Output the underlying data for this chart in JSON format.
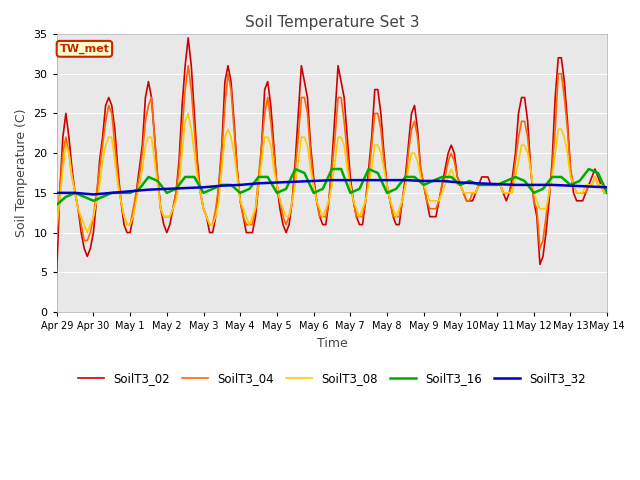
{
  "title": "Soil Temperature Set 3",
  "xlabel": "Time",
  "ylabel": "Soil Temperature (C)",
  "ylim": [
    0,
    35
  ],
  "fig_bg_color": "#ffffff",
  "plot_bg_color": "#e8e8e8",
  "annotation_text": "TW_met",
  "annotation_bg": "#ffffcc",
  "annotation_border": "#cc2200",
  "series_order": [
    "SoilT3_02",
    "SoilT3_04",
    "SoilT3_08",
    "SoilT3_16",
    "SoilT3_32"
  ],
  "series": {
    "SoilT3_02": {
      "color": "#cc0000",
      "linewidth": 1.2,
      "x": [
        0,
        0.083,
        0.167,
        0.25,
        0.333,
        0.417,
        0.5,
        0.583,
        0.667,
        0.75,
        0.833,
        0.917,
        1.0,
        1.083,
        1.167,
        1.25,
        1.333,
        1.417,
        1.5,
        1.583,
        1.667,
        1.75,
        1.833,
        1.917,
        2.0,
        2.083,
        2.167,
        2.25,
        2.333,
        2.417,
        2.5,
        2.583,
        2.667,
        2.75,
        2.833,
        2.917,
        3.0,
        3.083,
        3.167,
        3.25,
        3.333,
        3.417,
        3.5,
        3.583,
        3.667,
        3.75,
        3.833,
        3.917,
        4.0,
        4.083,
        4.167,
        4.25,
        4.333,
        4.417,
        4.5,
        4.583,
        4.667,
        4.75,
        4.833,
        4.917,
        5.0,
        5.083,
        5.167,
        5.25,
        5.333,
        5.417,
        5.5,
        5.583,
        5.667,
        5.75,
        5.833,
        5.917,
        6.0,
        6.083,
        6.167,
        6.25,
        6.333,
        6.417,
        6.5,
        6.583,
        6.667,
        6.75,
        6.833,
        6.917,
        7.0,
        7.083,
        7.167,
        7.25,
        7.333,
        7.417,
        7.5,
        7.583,
        7.667,
        7.75,
        7.833,
        7.917,
        8.0,
        8.083,
        8.167,
        8.25,
        8.333,
        8.417,
        8.5,
        8.583,
        8.667,
        8.75,
        8.833,
        8.917,
        9.0,
        9.083,
        9.167,
        9.25,
        9.333,
        9.417,
        9.5,
        9.583,
        9.667,
        9.75,
        9.833,
        9.917,
        10.0,
        10.083,
        10.167,
        10.25,
        10.333,
        10.417,
        10.5,
        10.583,
        10.667,
        10.75,
        10.833,
        10.917,
        11.0,
        11.083,
        11.167,
        11.25,
        11.333,
        11.417,
        11.5,
        11.583,
        11.667,
        11.75,
        11.833,
        11.917,
        12.0,
        12.083,
        12.167,
        12.25,
        12.333,
        12.417,
        12.5,
        12.583,
        12.667,
        12.75,
        12.833,
        12.917,
        13.0,
        13.083,
        13.167,
        13.25,
        13.333,
        13.417,
        13.5,
        13.583,
        13.667,
        13.75,
        13.833,
        13.917,
        14.0,
        14.083,
        14.167,
        14.25,
        14.333,
        14.417,
        14.5,
        14.583,
        14.667,
        14.75,
        14.833,
        14.917,
        15.0
      ],
      "y": [
        5,
        15,
        22,
        25,
        22,
        18,
        15,
        13,
        10,
        8,
        7,
        8,
        10,
        14,
        19,
        22,
        26,
        27,
        26,
        23,
        18,
        14,
        11,
        10,
        10,
        12,
        15,
        18,
        21,
        27,
        29,
        27,
        22,
        17,
        13,
        11,
        10,
        11,
        13,
        15,
        19,
        26,
        31,
        34.5,
        31,
        25,
        19,
        15,
        13,
        12,
        10,
        10,
        12,
        16,
        21,
        29,
        31,
        29,
        24,
        18,
        14,
        12,
        10,
        10,
        10,
        12,
        16,
        21,
        28,
        29,
        26,
        21,
        16,
        13,
        11,
        10,
        11,
        14,
        19,
        25,
        31,
        29,
        27,
        21,
        17,
        14,
        12,
        11,
        11,
        14,
        19,
        25,
        31,
        29,
        27,
        22,
        17,
        14,
        12,
        11,
        11,
        14,
        18,
        22,
        28,
        28,
        25,
        20,
        16,
        14,
        12,
        11,
        11,
        14,
        17,
        21,
        25,
        26,
        23,
        18,
        16,
        14,
        12,
        12,
        12,
        14,
        16,
        18,
        20,
        21,
        20,
        17,
        16,
        15,
        14,
        14,
        14,
        15,
        16,
        17,
        17,
        17,
        16,
        16,
        16,
        16,
        15,
        14,
        15,
        17,
        20,
        25,
        27,
        27,
        24,
        18,
        14,
        12,
        6,
        7,
        10,
        14,
        19,
        27,
        32,
        32,
        29,
        24,
        18,
        15,
        14,
        14,
        14,
        15,
        16,
        17,
        18,
        17,
        16,
        15,
        15
      ]
    },
    "SoilT3_04": {
      "color": "#ff6600",
      "linewidth": 1.2,
      "x": [
        0,
        0.083,
        0.167,
        0.25,
        0.333,
        0.417,
        0.5,
        0.583,
        0.667,
        0.75,
        0.833,
        0.917,
        1.0,
        1.083,
        1.167,
        1.25,
        1.333,
        1.417,
        1.5,
        1.583,
        1.667,
        1.75,
        1.833,
        1.917,
        2.0,
        2.083,
        2.167,
        2.25,
        2.333,
        2.417,
        2.5,
        2.583,
        2.667,
        2.75,
        2.833,
        2.917,
        3.0,
        3.083,
        3.167,
        3.25,
        3.333,
        3.417,
        3.5,
        3.583,
        3.667,
        3.75,
        3.833,
        3.917,
        4.0,
        4.083,
        4.167,
        4.25,
        4.333,
        4.417,
        4.5,
        4.583,
        4.667,
        4.75,
        4.833,
        4.917,
        5.0,
        5.083,
        5.167,
        5.25,
        5.333,
        5.417,
        5.5,
        5.583,
        5.667,
        5.75,
        5.833,
        5.917,
        6.0,
        6.083,
        6.167,
        6.25,
        6.333,
        6.417,
        6.5,
        6.583,
        6.667,
        6.75,
        6.833,
        6.917,
        7.0,
        7.083,
        7.167,
        7.25,
        7.333,
        7.417,
        7.5,
        7.583,
        7.667,
        7.75,
        7.833,
        7.917,
        8.0,
        8.083,
        8.167,
        8.25,
        8.333,
        8.417,
        8.5,
        8.583,
        8.667,
        8.75,
        8.833,
        8.917,
        9.0,
        9.083,
        9.167,
        9.25,
        9.333,
        9.417,
        9.5,
        9.583,
        9.667,
        9.75,
        9.833,
        9.917,
        10.0,
        10.083,
        10.167,
        10.25,
        10.333,
        10.417,
        10.5,
        10.583,
        10.667,
        10.75,
        10.833,
        10.917,
        11.0,
        11.083,
        11.167,
        11.25,
        11.333,
        11.417,
        11.5,
        11.583,
        11.667,
        11.75,
        11.833,
        11.917,
        12.0,
        12.083,
        12.167,
        12.25,
        12.333,
        12.417,
        12.5,
        12.583,
        12.667,
        12.75,
        12.833,
        12.917,
        13.0,
        13.083,
        13.167,
        13.25,
        13.333,
        13.417,
        13.5,
        13.583,
        13.667,
        13.75,
        13.833,
        13.917,
        14.0,
        14.083,
        14.167,
        14.25,
        14.333,
        14.417,
        14.5,
        14.583,
        14.667,
        14.75,
        14.833,
        14.917,
        15.0
      ],
      "y": [
        9,
        15,
        20,
        22,
        20,
        17,
        15,
        13,
        11,
        9,
        9,
        10,
        12,
        15,
        18,
        21,
        24,
        26,
        25,
        21,
        17,
        14,
        12,
        11,
        11,
        13,
        15,
        17,
        20,
        24,
        26,
        27,
        22,
        17,
        13,
        12,
        12,
        12,
        13,
        15,
        18,
        23,
        28,
        31,
        28,
        23,
        18,
        15,
        13,
        12,
        11,
        11,
        13,
        16,
        20,
        26,
        30,
        28,
        23,
        18,
        14,
        12,
        11,
        11,
        11,
        13,
        17,
        21,
        25,
        27,
        24,
        20,
        16,
        14,
        12,
        11,
        12,
        14,
        18,
        22,
        27,
        27,
        25,
        20,
        16,
        14,
        12,
        12,
        12,
        14,
        18,
        22,
        27,
        27,
        24,
        20,
        16,
        14,
        12,
        12,
        12,
        14,
        17,
        21,
        25,
        25,
        23,
        19,
        16,
        14,
        12,
        12,
        12,
        14,
        16,
        20,
        23,
        24,
        22,
        18,
        16,
        14,
        13,
        13,
        13,
        14,
        16,
        17,
        19,
        20,
        19,
        17,
        16,
        15,
        14,
        14,
        15,
        15,
        16,
        16,
        16,
        16,
        16,
        16,
        16,
        16,
        15,
        15,
        15,
        16,
        19,
        22,
        24,
        24,
        22,
        18,
        14,
        13,
        8,
        9,
        12,
        15,
        18,
        23,
        30,
        30,
        27,
        23,
        18,
        16,
        15,
        15,
        15,
        15,
        16,
        16,
        17,
        16,
        16,
        15,
        15
      ]
    },
    "SoilT3_08": {
      "color": "#ffcc00",
      "linewidth": 1.2,
      "x": [
        0,
        0.083,
        0.167,
        0.25,
        0.333,
        0.417,
        0.5,
        0.583,
        0.667,
        0.75,
        0.833,
        0.917,
        1.0,
        1.083,
        1.167,
        1.25,
        1.333,
        1.417,
        1.5,
        1.583,
        1.667,
        1.75,
        1.833,
        1.917,
        2.0,
        2.083,
        2.167,
        2.25,
        2.333,
        2.417,
        2.5,
        2.583,
        2.667,
        2.75,
        2.833,
        2.917,
        3.0,
        3.083,
        3.167,
        3.25,
        3.333,
        3.417,
        3.5,
        3.583,
        3.667,
        3.75,
        3.833,
        3.917,
        4.0,
        4.083,
        4.167,
        4.25,
        4.333,
        4.417,
        4.5,
        4.583,
        4.667,
        4.75,
        4.833,
        4.917,
        5.0,
        5.083,
        5.167,
        5.25,
        5.333,
        5.417,
        5.5,
        5.583,
        5.667,
        5.75,
        5.833,
        5.917,
        6.0,
        6.083,
        6.167,
        6.25,
        6.333,
        6.417,
        6.5,
        6.583,
        6.667,
        6.75,
        6.833,
        6.917,
        7.0,
        7.083,
        7.167,
        7.25,
        7.333,
        7.417,
        7.5,
        7.583,
        7.667,
        7.75,
        7.833,
        7.917,
        8.0,
        8.083,
        8.167,
        8.25,
        8.333,
        8.417,
        8.5,
        8.583,
        8.667,
        8.75,
        8.833,
        8.917,
        9.0,
        9.083,
        9.167,
        9.25,
        9.333,
        9.417,
        9.5,
        9.583,
        9.667,
        9.75,
        9.833,
        9.917,
        10.0,
        10.083,
        10.167,
        10.25,
        10.333,
        10.417,
        10.5,
        10.583,
        10.667,
        10.75,
        10.833,
        10.917,
        11.0,
        11.083,
        11.167,
        11.25,
        11.333,
        11.417,
        11.5,
        11.583,
        11.667,
        11.75,
        11.833,
        11.917,
        12.0,
        12.083,
        12.167,
        12.25,
        12.333,
        12.417,
        12.5,
        12.583,
        12.667,
        12.75,
        12.833,
        12.917,
        13.0,
        13.083,
        13.167,
        13.25,
        13.333,
        13.417,
        13.5,
        13.583,
        13.667,
        13.75,
        13.833,
        13.917,
        14.0,
        14.083,
        14.167,
        14.25,
        14.333,
        14.417,
        14.5,
        14.583,
        14.667,
        14.75,
        14.833,
        14.917,
        15.0
      ],
      "y": [
        11,
        14,
        18,
        21,
        20,
        17,
        15,
        13,
        12,
        11,
        10,
        11,
        12,
        14,
        16,
        19,
        21,
        22,
        22,
        19,
        16,
        14,
        12,
        11,
        11,
        12,
        14,
        16,
        18,
        21,
        22,
        22,
        19,
        16,
        13,
        12,
        12,
        12,
        13,
        14,
        16,
        20,
        24,
        25,
        23,
        20,
        17,
        15,
        13,
        12,
        11,
        11,
        12,
        14,
        18,
        22,
        23,
        22,
        20,
        17,
        14,
        13,
        12,
        11,
        12,
        13,
        16,
        19,
        22,
        22,
        21,
        18,
        16,
        14,
        13,
        12,
        12,
        14,
        16,
        19,
        22,
        22,
        21,
        18,
        16,
        14,
        13,
        12,
        13,
        14,
        16,
        19,
        22,
        22,
        21,
        18,
        16,
        14,
        13,
        12,
        13,
        14,
        16,
        18,
        21,
        21,
        20,
        18,
        16,
        14,
        13,
        12,
        13,
        14,
        16,
        18,
        20,
        20,
        19,
        17,
        16,
        15,
        14,
        14,
        14,
        14,
        15,
        16,
        17,
        18,
        17,
        16,
        16,
        15,
        15,
        15,
        15,
        15,
        16,
        16,
        16,
        16,
        16,
        16,
        16,
        16,
        15,
        15,
        15,
        15,
        17,
        19,
        21,
        21,
        20,
        18,
        15,
        14,
        13,
        13,
        13,
        15,
        17,
        20,
        23,
        23,
        22,
        20,
        17,
        16,
        15,
        15,
        15,
        16,
        16,
        16,
        17,
        16,
        16,
        15,
        15
      ]
    },
    "SoilT3_16": {
      "color": "#00aa00",
      "linewidth": 1.8,
      "x": [
        0,
        0.25,
        0.5,
        0.75,
        1.0,
        1.25,
        1.5,
        1.75,
        2.0,
        2.25,
        2.5,
        2.75,
        3.0,
        3.25,
        3.5,
        3.75,
        4.0,
        4.25,
        4.5,
        4.75,
        5.0,
        5.25,
        5.5,
        5.75,
        6.0,
        6.25,
        6.5,
        6.75,
        7.0,
        7.25,
        7.5,
        7.75,
        8.0,
        8.25,
        8.5,
        8.75,
        9.0,
        9.25,
        9.5,
        9.75,
        10.0,
        10.25,
        10.5,
        10.75,
        11.0,
        11.25,
        11.5,
        11.75,
        12.0,
        12.25,
        12.5,
        12.75,
        13.0,
        13.25,
        13.5,
        13.75,
        14.0,
        14.25,
        14.5,
        14.75,
        15.0
      ],
      "y": [
        13.5,
        14.5,
        15,
        14.5,
        14,
        14.5,
        15,
        15,
        15,
        15.5,
        17,
        16.5,
        15,
        15.5,
        17,
        17,
        15,
        15.5,
        16,
        16,
        15,
        15.5,
        17,
        17,
        15,
        15.5,
        18,
        17.5,
        15,
        15.5,
        18,
        18,
        15,
        15.5,
        18,
        17.5,
        15,
        15.5,
        17,
        17,
        16,
        16.5,
        17,
        17,
        16,
        16.5,
        16,
        16,
        16,
        16.5,
        17,
        16.5,
        15,
        15.5,
        17,
        17,
        16,
        16.5,
        18,
        17.5,
        15
      ]
    },
    "SoilT3_32": {
      "color": "#0000cc",
      "linewidth": 1.8,
      "x": [
        0,
        0.5,
        1.0,
        1.5,
        2.0,
        2.5,
        3.0,
        3.5,
        4.0,
        4.5,
        5.0,
        5.5,
        6.0,
        6.5,
        7.0,
        7.5,
        8.0,
        8.5,
        9.0,
        9.5,
        10.0,
        10.5,
        11.0,
        11.5,
        12.0,
        12.5,
        13.0,
        13.5,
        14.0,
        14.5,
        15.0
      ],
      "y": [
        15.0,
        15.0,
        14.8,
        15.0,
        15.2,
        15.4,
        15.5,
        15.6,
        15.7,
        15.9,
        16.0,
        16.2,
        16.3,
        16.4,
        16.5,
        16.6,
        16.6,
        16.6,
        16.6,
        16.6,
        16.5,
        16.5,
        16.3,
        16.2,
        16.1,
        16.0,
        16.0,
        16.0,
        15.9,
        15.8,
        15.7
      ]
    }
  },
  "x_tick_positions": [
    0,
    1,
    2,
    3,
    4,
    5,
    6,
    7,
    8,
    9,
    10,
    11,
    12,
    13,
    14,
    15
  ],
  "x_tick_labels": [
    "Apr 29",
    "Apr 30",
    "May 1",
    "May 2",
    "May 3",
    "May 4",
    "May 5",
    "May 6",
    "May 7",
    "May 8",
    "May 9",
    "May 10",
    "May 11",
    "May 12",
    "May 13",
    "May 14"
  ],
  "y_tick_positions": [
    0,
    5,
    10,
    15,
    20,
    25,
    30,
    35
  ],
  "y_tick_labels": [
    "0",
    "5",
    "10",
    "15",
    "20",
    "25",
    "30",
    "35"
  ],
  "grid_color": "#ffffff",
  "legend_series": [
    "SoilT3_02",
    "SoilT3_04",
    "SoilT3_08",
    "SoilT3_16",
    "SoilT3_32"
  ],
  "legend_colors": [
    "#cc0000",
    "#ff6600",
    "#ffcc00",
    "#00aa00",
    "#0000cc"
  ]
}
